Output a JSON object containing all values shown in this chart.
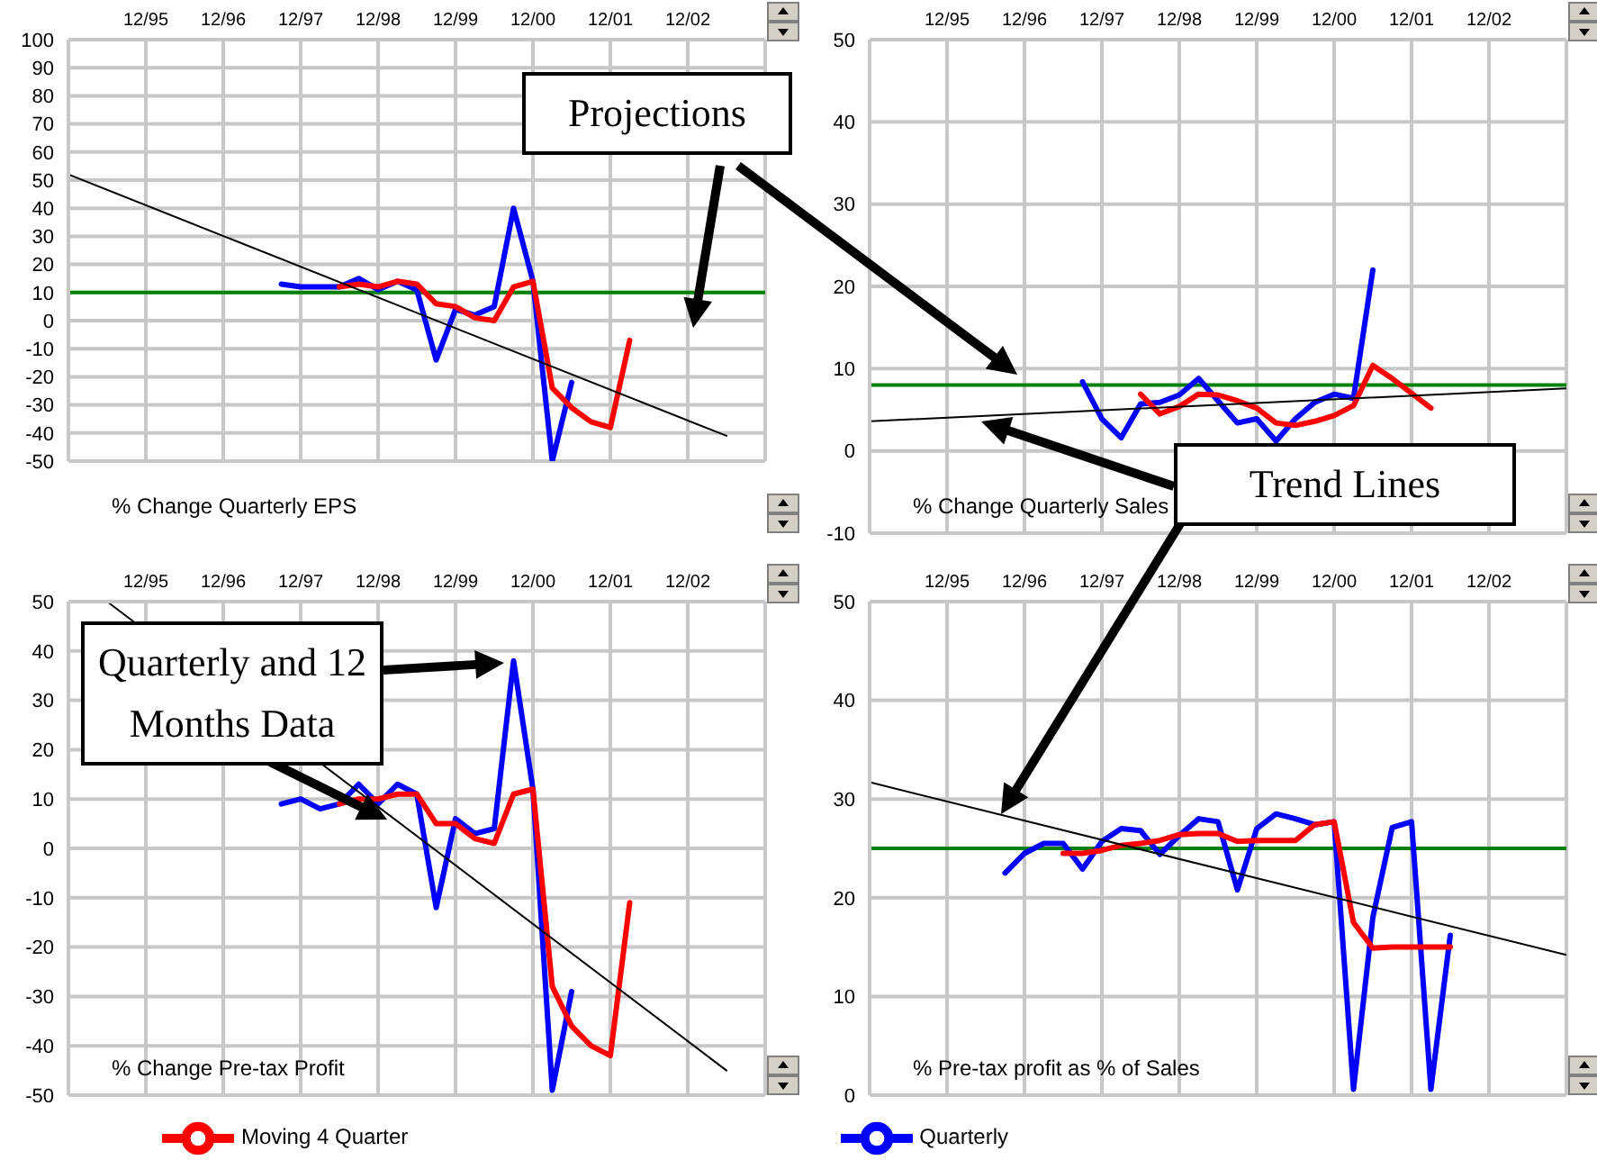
{
  "chart_data": [
    {
      "type": "line",
      "title": "% Change Quarterly EPS",
      "xlim": [
        "1994-12",
        "2003-12"
      ],
      "xticks": [
        {
          "value": "1995-12",
          "label": "12/95"
        },
        {
          "value": "1996-12",
          "label": "12/96"
        },
        {
          "value": "1997-12",
          "label": "12/97"
        },
        {
          "value": "1998-12",
          "label": "12/98"
        },
        {
          "value": "1999-12",
          "label": "12/99"
        },
        {
          "value": "2000-12",
          "label": "12/00"
        },
        {
          "value": "2001-12",
          "label": "12/01"
        },
        {
          "value": "2002-12",
          "label": "12/02"
        }
      ],
      "ylim": [
        -50,
        100
      ],
      "yticks": [
        -50,
        -40,
        -30,
        -20,
        -10,
        0,
        10,
        20,
        30,
        40,
        50,
        60,
        70,
        80,
        90,
        100
      ],
      "grid": true,
      "legend": "bottom",
      "series": [
        {
          "name": "Quarterly",
          "color": "#0000ff",
          "x": [
            "1997-09",
            "1997-12",
            "1998-03",
            "1998-06",
            "1998-09",
            "1998-12",
            "1999-03",
            "1999-06",
            "1999-09",
            "1999-12",
            "2000-03",
            "2000-06",
            "2000-09",
            "2000-12",
            "2001-03",
            "2001-06"
          ],
          "values": [
            13,
            12,
            12,
            12,
            15,
            11,
            14,
            11,
            -14,
            4,
            2,
            5,
            40,
            14,
            -50,
            -22
          ]
        },
        {
          "name": "Moving 4 Quarter",
          "color": "#ff0000",
          "x": [
            "1998-06",
            "1998-09",
            "1998-12",
            "1999-03",
            "1999-06",
            "1999-09",
            "1999-12",
            "2000-03",
            "2000-06",
            "2000-09",
            "2000-12",
            "2001-03",
            "2001-06",
            "2001-09",
            "2001-12",
            "2002-03"
          ],
          "values": [
            12,
            13,
            12,
            14,
            13,
            6,
            5,
            1,
            0,
            12,
            14,
            -24,
            -31,
            -36,
            -38,
            -7
          ]
        },
        {
          "type": "line",
          "color": "#000000",
          "x": [
            "1994-12",
            "2003-06"
          ],
          "values": [
            52,
            -41
          ]
        }
      ],
      "ref_lines": [
        {
          "axis": "y",
          "value": 10,
          "color": "#008000"
        }
      ],
      "annotations": [
        "Projections"
      ]
    },
    {
      "type": "line",
      "title": "% Change Quarterly Sales",
      "xlim": [
        "1994-12",
        "2003-12"
      ],
      "xticks": [
        {
          "value": "1995-12",
          "label": "12/95"
        },
        {
          "value": "1996-12",
          "label": "12/96"
        },
        {
          "value": "1997-12",
          "label": "12/97"
        },
        {
          "value": "1998-12",
          "label": "12/98"
        },
        {
          "value": "1999-12",
          "label": "12/99"
        },
        {
          "value": "2000-12",
          "label": "12/00"
        },
        {
          "value": "2001-12",
          "label": "12/01"
        },
        {
          "value": "2002-12",
          "label": "12/02"
        }
      ],
      "ylim": [
        -10,
        50
      ],
      "yticks": [
        -10,
        0,
        10,
        20,
        30,
        40,
        50
      ],
      "grid": true,
      "series": [
        {
          "color": "#0000ff",
          "x": [
            "1997-09",
            "1997-12",
            "1998-03",
            "1998-06",
            "1998-09",
            "1998-12",
            "1999-03",
            "1999-06",
            "1999-09",
            "1999-12",
            "2000-03",
            "2000-06",
            "2000-09",
            "2000-12",
            "2001-03",
            "2001-06"
          ],
          "values": [
            8.4,
            3.9,
            1.6,
            5.7,
            5.9,
            6.8,
            8.8,
            6.1,
            3.4,
            3.9,
            1.2,
            3.9,
            5.9,
            6.9,
            6.4,
            22
          ]
        },
        {
          "color": "#ff0000",
          "x": [
            "1998-06",
            "1998-09",
            "1998-12",
            "1999-03",
            "1999-06",
            "1999-09",
            "1999-12",
            "2000-03",
            "2000-06",
            "2000-09",
            "2000-12",
            "2001-03",
            "2001-06",
            "2001-09",
            "2001-12",
            "2002-03"
          ],
          "values": [
            6.9,
            4.5,
            5.4,
            6.9,
            6.8,
            6.1,
            5.2,
            3.4,
            3.1,
            3.6,
            4.3,
            5.5,
            10.4,
            8.8,
            7.0,
            5.2
          ]
        },
        {
          "type": "line",
          "color": "#000000",
          "x": [
            "1994-12",
            "2003-12"
          ],
          "values": [
            3.6,
            7.6
          ]
        }
      ],
      "ref_lines": [
        {
          "axis": "y",
          "value": 8,
          "color": "#008000"
        }
      ],
      "annotations": [
        "Trend Lines"
      ]
    },
    {
      "type": "line",
      "title": "% Change Pre-tax Profit",
      "xlim": [
        "1994-12",
        "2003-12"
      ],
      "xticks": [
        {
          "value": "1995-12",
          "label": "12/95"
        },
        {
          "value": "1996-12",
          "label": "12/96"
        },
        {
          "value": "1997-12",
          "label": "12/97"
        },
        {
          "value": "1998-12",
          "label": "12/98"
        },
        {
          "value": "1999-12",
          "label": "12/99"
        },
        {
          "value": "2000-12",
          "label": "12/00"
        },
        {
          "value": "2001-12",
          "label": "12/01"
        },
        {
          "value": "2002-12",
          "label": "12/02"
        }
      ],
      "ylim": [
        -50,
        50
      ],
      "yticks": [
        -50,
        -40,
        -30,
        -20,
        -10,
        0,
        10,
        20,
        30,
        40,
        50
      ],
      "grid": true,
      "series": [
        {
          "color": "#0000ff",
          "x": [
            "1997-09",
            "1997-12",
            "1998-03",
            "1998-06",
            "1998-09",
            "1998-12",
            "1999-03",
            "1999-06",
            "1999-09",
            "1999-12",
            "2000-03",
            "2000-06",
            "2000-09",
            "2000-12",
            "2001-03",
            "2001-06"
          ],
          "values": [
            9,
            10,
            8,
            9,
            13,
            9,
            13,
            11,
            -12,
            6,
            3,
            4,
            38,
            12,
            -49,
            -29
          ]
        },
        {
          "color": "#ff0000",
          "x": [
            "1998-06",
            "1998-09",
            "1998-12",
            "1999-03",
            "1999-06",
            "1999-09",
            "1999-12",
            "2000-03",
            "2000-06",
            "2000-09",
            "2000-12",
            "2001-03",
            "2001-06",
            "2001-09",
            "2001-12",
            "2002-03"
          ],
          "values": [
            9,
            10,
            10,
            11,
            11,
            5,
            5,
            2,
            1,
            11,
            12,
            -28,
            -36,
            -40,
            -42,
            -11
          ]
        },
        {
          "type": "line",
          "color": "#000000",
          "x": [
            "1995-06",
            "2003-06"
          ],
          "values": [
            50,
            -45
          ]
        }
      ],
      "annotations": [
        "Quarterly and 12 Months Data"
      ]
    },
    {
      "type": "line",
      "title": "% Pre-tax profit as % of Sales",
      "xlim": [
        "1994-12",
        "2003-12"
      ],
      "xticks": [
        {
          "value": "1995-12",
          "label": "12/95"
        },
        {
          "value": "1996-12",
          "label": "12/96"
        },
        {
          "value": "1997-12",
          "label": "12/97"
        },
        {
          "value": "1998-12",
          "label": "12/98"
        },
        {
          "value": "1999-12",
          "label": "12/99"
        },
        {
          "value": "2000-12",
          "label": "12/00"
        },
        {
          "value": "2001-12",
          "label": "12/01"
        },
        {
          "value": "2002-12",
          "label": "12/02"
        }
      ],
      "ylim": [
        0,
        50
      ],
      "yticks": [
        0,
        10,
        20,
        30,
        40,
        50
      ],
      "grid": true,
      "series": [
        {
          "color": "#0000ff",
          "x": [
            "1996-09",
            "1996-12",
            "1997-03",
            "1997-06",
            "1997-09",
            "1997-12",
            "1998-03",
            "1998-06",
            "1998-09",
            "1998-12",
            "1999-03",
            "1999-06",
            "1999-09",
            "1999-12",
            "2000-03",
            "2000-06",
            "2000-09",
            "2000-12",
            "2001-03",
            "2001-06",
            "2001-09",
            "2001-12",
            "2002-03",
            "2002-06"
          ],
          "values": [
            22.5,
            24.5,
            25.5,
            25.5,
            22.9,
            25.7,
            27,
            26.8,
            24.4,
            26.3,
            28,
            27.7,
            20.8,
            27,
            28.5,
            28,
            27.4,
            27.7,
            0.6,
            18,
            27.1,
            27.7,
            0.6,
            16.2
          ]
        },
        {
          "color": "#ff0000",
          "x": [
            "1997-06",
            "1997-09",
            "1997-12",
            "1998-03",
            "1998-06",
            "1998-09",
            "1998-12",
            "1999-03",
            "1999-06",
            "1999-09",
            "1999-12",
            "2000-03",
            "2000-06",
            "2000-09",
            "2000-12",
            "2001-03",
            "2001-06",
            "2001-09",
            "2001-12",
            "2002-03",
            "2002-06"
          ],
          "values": [
            24.5,
            24.5,
            24.8,
            25.3,
            25.5,
            25.8,
            26.4,
            26.5,
            26.5,
            25.7,
            25.8,
            25.8,
            25.8,
            27.4,
            27.7,
            17.5,
            14.9,
            15,
            15,
            15,
            15
          ]
        },
        {
          "type": "line",
          "color": "#000000",
          "x": [
            "1994-12",
            "2003-12"
          ],
          "values": [
            31.7,
            14.2
          ]
        }
      ],
      "ref_lines": [
        {
          "axis": "y",
          "value": 25,
          "color": "#008000"
        }
      ]
    }
  ]
}
